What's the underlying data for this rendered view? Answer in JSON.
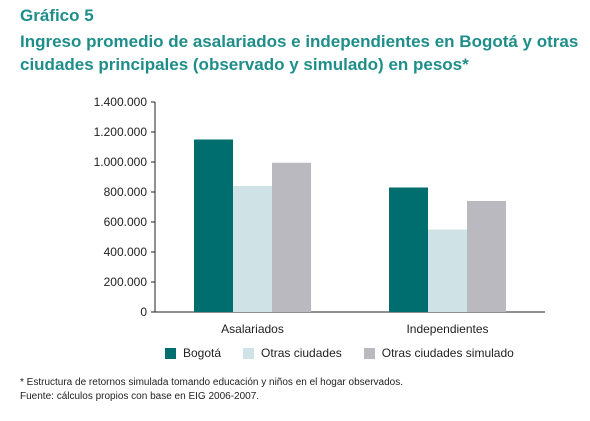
{
  "figure": {
    "label": "Gráfico 5",
    "title": "Ingreso promedio de asalariados e independientes en Bogotá y otras ciudades principales (observado y simulado) en pesos*"
  },
  "chart_data": {
    "type": "bar",
    "categories": [
      "Asalariados",
      "Independientes"
    ],
    "series": [
      {
        "name": "Bogotá",
        "values": [
          1150000,
          830000
        ],
        "color": "#006e6e"
      },
      {
        "name": "Otras ciudades",
        "values": [
          840000,
          550000
        ],
        "color": "#cfe3e6"
      },
      {
        "name": "Otras ciudades simulado",
        "values": [
          995000,
          740000
        ],
        "color": "#b9b9bf"
      }
    ],
    "ylim": [
      0,
      1400000
    ],
    "yticks": [
      "0",
      "200.000",
      "400.000",
      "600.000",
      "800.000",
      "1.000.000",
      "1.200.000",
      "1.400.000"
    ],
    "grid": false,
    "legend_position": "bottom"
  },
  "notes": {
    "footnote": "* Estructura de retornos simulada tomando educación y niños en el hogar observados.",
    "source": "Fuente: cálculos propios con base en EIG 2006-2007."
  }
}
